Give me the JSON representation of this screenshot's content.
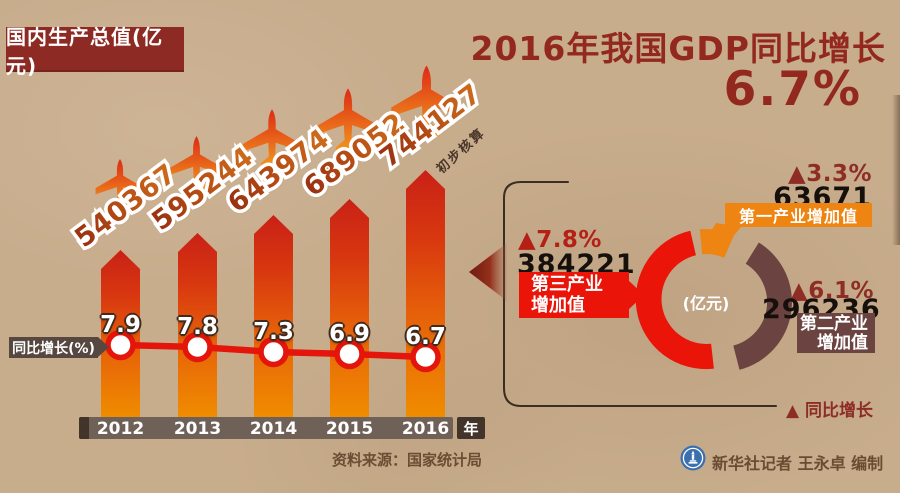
{
  "colors": {
    "background": "#c8ad8d",
    "title_red": "#93281e",
    "bright_red": "#ea1408",
    "orange": "#ee8411",
    "brown": "#6b4341",
    "dark_red_label": "#8e2d26",
    "axis_gray": "#6f6158",
    "axis_dark": "#42332b",
    "logo_blue": "#3c6fae"
  },
  "header": {
    "unit_box": "国内生产总值(亿元)",
    "title": "2016年我国GDP同比增长",
    "headline_value": "6.7%"
  },
  "bar_chart": {
    "years": [
      "2012",
      "2013",
      "2014",
      "2015",
      "2016"
    ],
    "year_unit": "年",
    "values": [
      "540367",
      "595244",
      "643974",
      "689052",
      "744127"
    ],
    "note": "初步核算",
    "growth_tag": "同比增长(%)",
    "growth_values": [
      "7.9",
      "7.8",
      "7.3",
      "6.9",
      "6.7"
    ]
  },
  "breakdown": {
    "center_label": "(亿元)",
    "legend": "▲ 同比增长",
    "segments": [
      {
        "id": "primary",
        "growth": "▲3.3%",
        "value": "63671",
        "label_lines": [
          "第一产业增加值"
        ],
        "color": "#ee8411"
      },
      {
        "id": "secondary",
        "growth": "▲6.1%",
        "value": "296236",
        "label_lines": [
          "第二产业",
          "增加值"
        ],
        "color": "#6b4341"
      },
      {
        "id": "tertiary",
        "growth": "▲7.8%",
        "value": "384221",
        "label_lines": [
          "第三产业",
          "增加值"
        ],
        "color": "#ea1408"
      }
    ]
  },
  "footer": {
    "source": "资料来源：国家统计局",
    "credit": "新华社记者 王永卓 编制"
  },
  "chart_data": [
    {
      "type": "bar",
      "title": "国内生产总值(亿元)",
      "categories": [
        "2012",
        "2013",
        "2014",
        "2015",
        "2016"
      ],
      "values": [
        540367,
        595244,
        643974,
        689052,
        744127
      ],
      "xlabel": "年",
      "ylabel": "亿元",
      "annotation": "2016年数值为初步核算",
      "note_label": "初步核算"
    },
    {
      "type": "line",
      "title": "同比增长(%)",
      "categories": [
        "2012",
        "2013",
        "2014",
        "2015",
        "2016"
      ],
      "values": [
        7.9,
        7.8,
        7.3,
        6.9,
        6.7
      ],
      "ylabel": "%"
    },
    {
      "type": "pie",
      "title": "(亿元)",
      "labels": [
        "第一产业增加值",
        "第二产业增加值",
        "第三产业增加值"
      ],
      "values": [
        63671,
        296236,
        384221
      ],
      "growth_rates": [
        "3.3%",
        "6.1%",
        "7.8%"
      ],
      "legend": "▲ 同比增长"
    }
  ]
}
